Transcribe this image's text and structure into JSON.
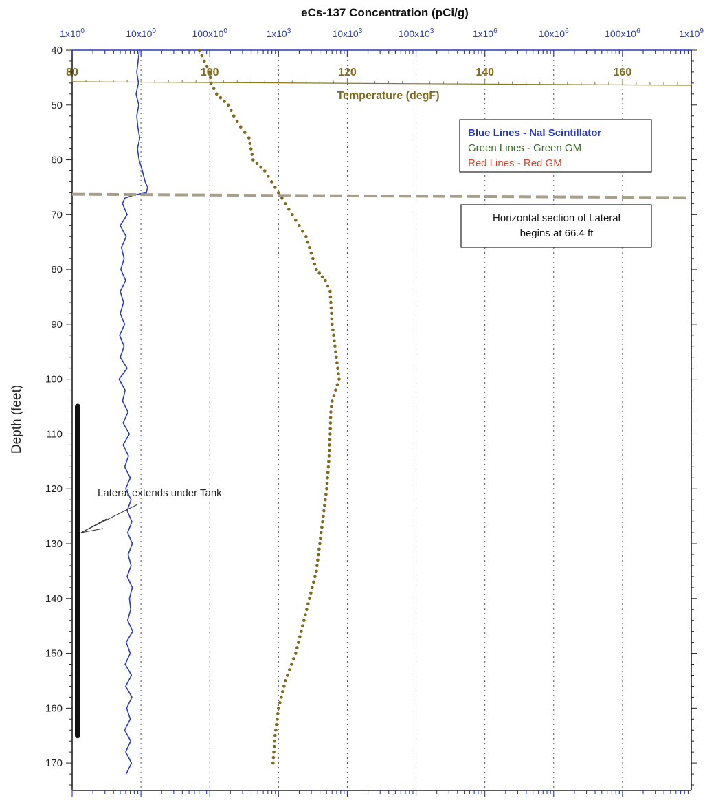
{
  "chart_data": {
    "type": "line",
    "title": "eCs-137 Concentration (pCi/g)",
    "ylabel": "Depth (feet)",
    "y_axis": {
      "ylim": [
        40,
        175
      ],
      "inverted": true,
      "ticks": [
        40,
        50,
        60,
        70,
        80,
        90,
        100,
        110,
        120,
        130,
        140,
        150,
        160,
        170
      ],
      "tick_labels": [
        "40",
        "50",
        "60",
        "70",
        "80",
        "90",
        "100",
        "110",
        "120",
        "130",
        "140",
        "150",
        "160",
        "170"
      ]
    },
    "top_axis": {
      "label": "eCs-137 Concentration (pCi/g)",
      "scale": "log",
      "range": [
        1,
        1000000000
      ],
      "ticks": [
        1,
        10,
        100,
        1000,
        10000,
        100000,
        1000000,
        10000000,
        100000000,
        1000000000
      ],
      "tick_labels": [
        {
          "mant": "1x10",
          "exp": "0"
        },
        {
          "mant": "10x10",
          "exp": "0"
        },
        {
          "mant": "100x10",
          "exp": "0"
        },
        {
          "mant": "1x10",
          "exp": "3"
        },
        {
          "mant": "10x10",
          "exp": "3"
        },
        {
          "mant": "100x10",
          "exp": "3"
        },
        {
          "mant": "1x10",
          "exp": "6"
        },
        {
          "mant": "10x10",
          "exp": "6"
        },
        {
          "mant": "100x10",
          "exp": "6"
        },
        {
          "mant": "1x10",
          "exp": "9"
        }
      ],
      "color": "#2b3cb4"
    },
    "temp_axis": {
      "label": "Temperature (degF)",
      "range": [
        80,
        170
      ],
      "ticks": [
        80,
        100,
        120,
        140,
        160
      ],
      "tick_labels": [
        "80",
        "100",
        "120",
        "140",
        "160"
      ],
      "color": "#7d6a1e"
    },
    "grid": {
      "vertical": true,
      "horizontal": false,
      "style": "dotted"
    },
    "series": [
      {
        "name": "Blue Lines - NaI Scintillator",
        "axis": "top",
        "color": "#2b3cb4",
        "style": "solid",
        "depth": [
          40,
          42,
          44,
          46,
          48,
          50,
          52,
          54,
          56,
          58,
          60,
          62,
          64,
          65,
          66,
          66.4,
          67,
          68,
          70,
          72,
          74,
          76,
          78,
          80,
          82,
          84,
          86,
          88,
          90,
          92,
          94,
          96,
          98,
          100,
          102,
          104,
          106,
          108,
          110,
          112,
          114,
          116,
          118,
          120,
          122,
          124,
          126,
          128,
          130,
          132,
          134,
          136,
          138,
          140,
          142,
          144,
          146,
          148,
          150,
          152,
          154,
          156,
          158,
          160,
          162,
          164,
          166,
          168,
          170,
          172
        ],
        "values": [
          9.5,
          9.1,
          8.7,
          9.2,
          8.5,
          9.3,
          8.7,
          9.0,
          9.6,
          8.9,
          9.4,
          10.5,
          11.5,
          12.5,
          12.0,
          8.0,
          5.8,
          5.4,
          6.3,
          5.0,
          6.1,
          5.2,
          5.7,
          5.1,
          6.0,
          5.0,
          5.6,
          5.0,
          5.8,
          4.9,
          5.7,
          5.0,
          6.3,
          4.8,
          5.9,
          5.4,
          6.5,
          5.5,
          6.8,
          5.5,
          6.6,
          5.8,
          7.0,
          6.0,
          7.2,
          6.3,
          7.4,
          6.4,
          7.5,
          6.5,
          7.2,
          6.3,
          7.5,
          6.8,
          7.1,
          6.4,
          7.6,
          6.1,
          7.0,
          5.9,
          7.3,
          6.0,
          7.4,
          6.2,
          7.0,
          5.8,
          7.1,
          6.0,
          7.3,
          6.1
        ]
      },
      {
        "name": "Temperature (degF)",
        "axis": "temperature",
        "color": "#7d6a1e",
        "style": "dotted",
        "depth": [
          40,
          42,
          44,
          46,
          48,
          50,
          52,
          54,
          56,
          58,
          60,
          62,
          64,
          66,
          68,
          70,
          72,
          74,
          76,
          78,
          80,
          82,
          84,
          86,
          88,
          90,
          92,
          94,
          96,
          98,
          100,
          102,
          104,
          106,
          110,
          115,
          120,
          125,
          130,
          135,
          140,
          145,
          150,
          155,
          160,
          165,
          170
        ],
        "values": [
          98.5,
          99.2,
          100.0,
          100.2,
          101.0,
          102.7,
          103.5,
          104.5,
          105.7,
          106.0,
          106.3,
          108.0,
          109.0,
          110.0,
          111.0,
          112.0,
          113.0,
          114.0,
          114.5,
          115.0,
          115.5,
          116.8,
          117.5,
          117.6,
          117.7,
          117.8,
          118.0,
          118.2,
          118.4,
          118.6,
          118.8,
          118.3,
          117.8,
          117.6,
          117.5,
          117.3,
          117.0,
          116.5,
          116.0,
          115.5,
          114.5,
          113.5,
          112.5,
          111.0,
          110.0,
          109.5,
          109.2
        ]
      }
    ],
    "legend": {
      "placement": "top-right",
      "entries": [
        {
          "text": "Blue Lines - NaI Scintillator",
          "color": "#2b3cb4"
        },
        {
          "text": "Green Lines - Green GM",
          "color": "#3c6b2a"
        },
        {
          "text": "Red Lines - Red GM",
          "color": "#d5452b"
        }
      ]
    },
    "annotations": {
      "lateral_depth": 66.4,
      "lateral_box_lines": [
        "Horizontal section of Lateral",
        "begins at 66.4 ft"
      ],
      "under_tank_text": "Lateral extends under Tank",
      "under_tank_range": [
        105,
        165
      ]
    }
  }
}
